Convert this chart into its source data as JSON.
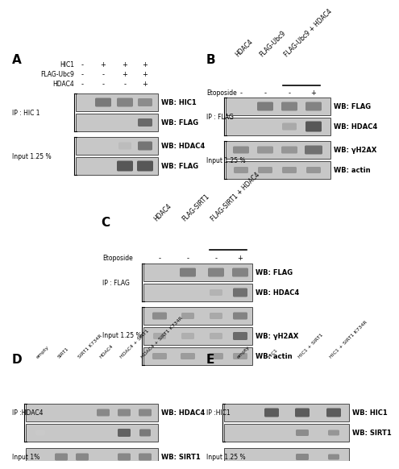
{
  "background_color": "#ffffff",
  "panel_A": {
    "label": "A",
    "row_labels": [
      "HIC1",
      "FLAG-Ubc9",
      "HDAC4"
    ],
    "col_vals": [
      [
        "-",
        "+",
        "+",
        "+"
      ],
      [
        "-",
        "-",
        "+",
        "+"
      ],
      [
        "-",
        "-",
        "-",
        "+"
      ]
    ],
    "ip_label": "IP : HIC 1",
    "input_label": "Input 1.25 %",
    "blot_labels": [
      "WB: HIC1",
      "WB: FLAG",
      "WB: HDAC4",
      "WB: FLAG"
    ]
  },
  "panel_B": {
    "label": "B",
    "col_labels": [
      "HDAC4",
      "FLAG-Ubc9",
      "FLAG-Ubc9 + HDAC4"
    ],
    "etoposide": [
      "-",
      "-",
      "-",
      "+"
    ],
    "ip_label": "IP : FLAG",
    "input_label": "Input 1.25 %",
    "blot_labels": [
      "WB: FLAG",
      "WB: HDAC4",
      "WB: γH2AX",
      "WB: actin"
    ]
  },
  "panel_C": {
    "label": "C",
    "col_labels": [
      "HDAC4",
      "FLAG-SIRT1",
      "FLAG-SIRT1 + HDAC4"
    ],
    "etoposide": [
      "-",
      "-",
      "-",
      "+"
    ],
    "ip_label": "IP : FLAG",
    "input_label": "Input 1.25 %",
    "blot_labels": [
      "WB: FLAG",
      "WB: HDAC4",
      "WB: γH2AX",
      "WB: actin"
    ]
  },
  "panel_D": {
    "label": "D",
    "col_labels": [
      "empty",
      "SIRT1",
      "SIRT1 K734R",
      "HDAC4",
      "HDAC4 + SIRT1",
      "HDAC4 + SIRT1 K734R"
    ],
    "ip_label": "IP :HDAC4",
    "input_label": "Input 1%",
    "blot_labels": [
      "WB: HDAC4",
      "WB: SIRT1"
    ]
  },
  "panel_E": {
    "label": "E",
    "col_labels": [
      "empty",
      "HIC1",
      "HIC1 + SIRT1",
      "HIC1 + SIRT1 K734R"
    ],
    "ip_label": "IP :HIC1",
    "input_label": "Input 1.25 %",
    "blot_labels": [
      "WB: HIC1",
      "WB: SIRT1"
    ]
  }
}
